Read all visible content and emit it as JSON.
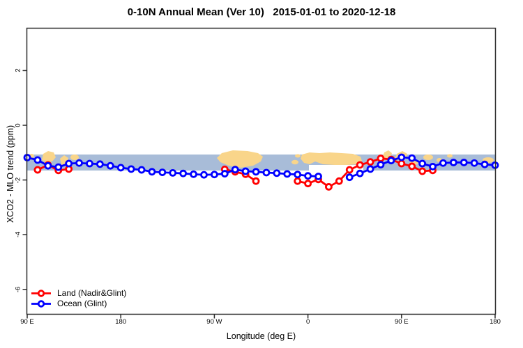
{
  "title": "0-10N Annual Mean (Ver 10)   2015-01-01 to 2020-12-18",
  "axes": {
    "x_label": "Longitude (deg E)",
    "y_label": "XCO2 - MLO trend (ppm)",
    "x_ticks": [
      {
        "deg": 90,
        "label": "90 E"
      },
      {
        "deg": 180,
        "label": "180"
      },
      {
        "deg": 270,
        "label": "90 W"
      },
      {
        "deg": 360,
        "label": "0"
      },
      {
        "deg": 450,
        "label": "90 E"
      },
      {
        "deg": 540,
        "label": "180"
      }
    ],
    "y_ticks": [
      {
        "value": 2,
        "label": "2"
      },
      {
        "value": 0,
        "label": "0"
      },
      {
        "value": -2,
        "label": "-2"
      },
      {
        "value": -4,
        "label": "-4"
      },
      {
        "value": -6,
        "label": "-6"
      }
    ]
  },
  "legend": {
    "items": [
      {
        "label": "Land (Nadir&Glint)",
        "color": "#ff0000"
      },
      {
        "label": "Ocean (Glint)",
        "color": "#0000ff"
      }
    ]
  },
  "colors": {
    "land_series": "#ff0000",
    "ocean_series": "#0000ff",
    "ocean_band": "#a8bcd8",
    "land_mask": "#f9d58a",
    "axis": "#2b2b2b"
  },
  "chart_data": {
    "type": "line",
    "title": "0-10N Annual Mean (Ver 10)   2015-01-01 to 2020-12-18",
    "xlabel": "Longitude (deg E)",
    "ylabel": "XCO2 - MLO trend (ppm)",
    "x_axis_note": "longitude axis starts at 90E, wraps through 180, 90W, 0 and back to 180; values below are degrees along that axis (90..540, step 10)",
    "x": [
      90,
      100,
      110,
      120,
      130,
      140,
      150,
      160,
      170,
      180,
      190,
      200,
      210,
      220,
      230,
      240,
      250,
      260,
      270,
      280,
      290,
      300,
      310,
      320,
      330,
      340,
      350,
      360,
      370,
      380,
      390,
      400,
      410,
      420,
      430,
      440,
      450,
      460,
      470,
      480,
      490,
      500,
      510,
      520,
      530,
      540
    ],
    "series": [
      {
        "name": "Land (Nadir&Glint)",
        "color": "#ff0000",
        "marker": "open-circle",
        "values": [
          null,
          -1.63,
          -1.45,
          -1.65,
          -1.6,
          null,
          null,
          null,
          null,
          null,
          null,
          null,
          null,
          null,
          null,
          null,
          null,
          null,
          null,
          -1.61,
          -1.7,
          -1.79,
          -2.04,
          null,
          null,
          null,
          -2.04,
          -2.13,
          -1.98,
          -2.25,
          -2.04,
          -1.63,
          -1.45,
          -1.34,
          -1.21,
          -1.25,
          -1.4,
          -1.5,
          -1.68,
          -1.65,
          null,
          null,
          null,
          null,
          null,
          null
        ]
      },
      {
        "name": "Ocean (Glint)",
        "color": "#0000ff",
        "marker": "open-circle",
        "values": [
          -1.18,
          -1.27,
          -1.48,
          -1.53,
          -1.4,
          -1.38,
          -1.4,
          -1.42,
          -1.48,
          -1.55,
          -1.6,
          -1.63,
          -1.7,
          -1.72,
          -1.74,
          -1.76,
          -1.79,
          -1.81,
          -1.8,
          -1.77,
          -1.62,
          -1.68,
          -1.7,
          -1.73,
          -1.75,
          -1.78,
          -1.8,
          -1.85,
          -1.87,
          null,
          null,
          -1.9,
          -1.76,
          -1.6,
          -1.44,
          -1.29,
          -1.17,
          -1.2,
          -1.4,
          -1.51,
          -1.38,
          -1.36,
          -1.36,
          -1.38,
          -1.43,
          -1.46
        ]
      }
    ],
    "ylim": [
      -6.9,
      3.6
    ],
    "grid": false,
    "legend_position": "bottom-left",
    "map_band": {
      "description": "horizontal 0-10N map strip: blue = ocean, tan = land masses",
      "ppm_top": -1.07,
      "ppm_bottom": -1.65,
      "ocean_color": "#a8bcd8",
      "land_color": "#f9d58a"
    }
  }
}
